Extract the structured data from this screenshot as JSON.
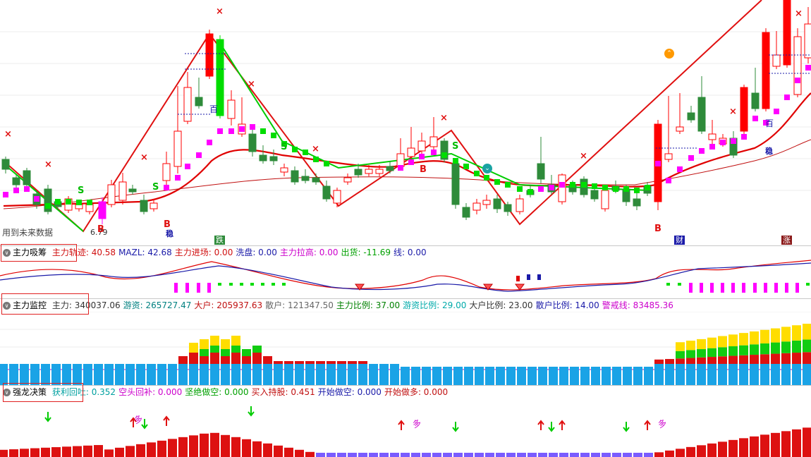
{
  "main": {
    "note_future": "用到未来数据",
    "low_price": "6.79",
    "tags": [
      "跌",
      "财",
      "涨"
    ],
    "wen": "稳",
    "bai": "百",
    "B": "B",
    "S": "S",
    "x": "×"
  },
  "ind1": {
    "title": "主力吸筹",
    "items": [
      {
        "label": "主力轨迹: 40.58",
        "color": "#d01010"
      },
      {
        "label": "MAZL: 42.68",
        "color": "#1a1aa8"
      },
      {
        "label": "主力进场: 0.00",
        "color": "#d01010"
      },
      {
        "label": "洗盘: 0.00",
        "color": "#1a1aa8"
      },
      {
        "label": "主力拉高: 0.00",
        "color": "#cc00cc"
      },
      {
        "label": "出货: -11.69",
        "color": "#00a000"
      },
      {
        "label": "线: 0.00",
        "color": "#1a1aa8"
      }
    ]
  },
  "ind2": {
    "title": "主力监控",
    "items": [
      {
        "label": "主力: 340037.06",
        "color": "#333333"
      },
      {
        "label": "游资: 265727.47",
        "color": "#008080"
      },
      {
        "label": "大户: 205937.63",
        "color": "#c01010"
      },
      {
        "label": "散户: 121347.50",
        "color": "#666666"
      },
      {
        "label": "主力比例: 37.00",
        "color": "#008000"
      },
      {
        "label": "游资比例: 29.00",
        "color": "#00aaaa"
      },
      {
        "label": "大户比例: 23.00",
        "color": "#333333"
      },
      {
        "label": "散户比例: 14.00",
        "color": "#1a1aa8"
      },
      {
        "label": "警戒线: 83485.36",
        "color": "#cc00cc"
      }
    ]
  },
  "ind3": {
    "title": "强龙决策",
    "items": [
      {
        "label": "获利回吐: 0.352",
        "color": "#00a0a0"
      },
      {
        "label": "空头回补: 0.000",
        "color": "#cc00cc"
      },
      {
        "label": "坚绝做空: 0.000",
        "color": "#00a000"
      },
      {
        "label": "买入持股: 0.451",
        "color": "#c01010"
      },
      {
        "label": "开始做空: 0.000",
        "color": "#1a1aa8"
      },
      {
        "label": "开始做多: 0.000",
        "color": "#c01010"
      }
    ],
    "duo": "多"
  },
  "colors": {
    "up": "#ff0000",
    "down": "#2e8b3a",
    "pink": "#ff00ff",
    "green": "#00dd00",
    "blue": "#1aa3e6"
  }
}
